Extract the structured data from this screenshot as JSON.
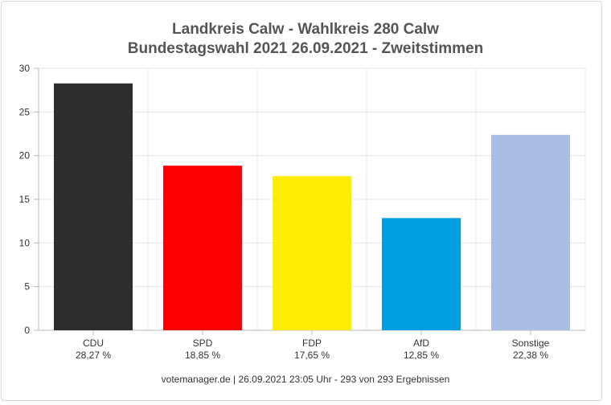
{
  "title_line1": "Landkreis Calw - Wahlkreis 280 Calw",
  "title_line2": "Bundestagswahl 2021 26.09.2021  - Zweitstimmen",
  "footer": "votemanager.de | 26.09.2021 23:05 Uhr - 293 von 293 Ergebnissen",
  "chart_data": {
    "type": "bar",
    "categories": [
      "CDU",
      "SPD",
      "FDP",
      "AfD",
      "Sonstige"
    ],
    "value_labels": [
      "28,27 %",
      "18,85 %",
      "17,65 %",
      "12,85 %",
      "22,38 %"
    ],
    "values": [
      28.27,
      18.85,
      17.65,
      12.85,
      22.38
    ],
    "colors": [
      "#2e2d2c",
      "#ff0000",
      "#ffed00",
      "#009ee0",
      "#aabde2"
    ],
    "ylim": [
      0,
      30
    ],
    "yticks": [
      0,
      5,
      10,
      15,
      20,
      25,
      30
    ],
    "grid": true,
    "legend": "none"
  }
}
